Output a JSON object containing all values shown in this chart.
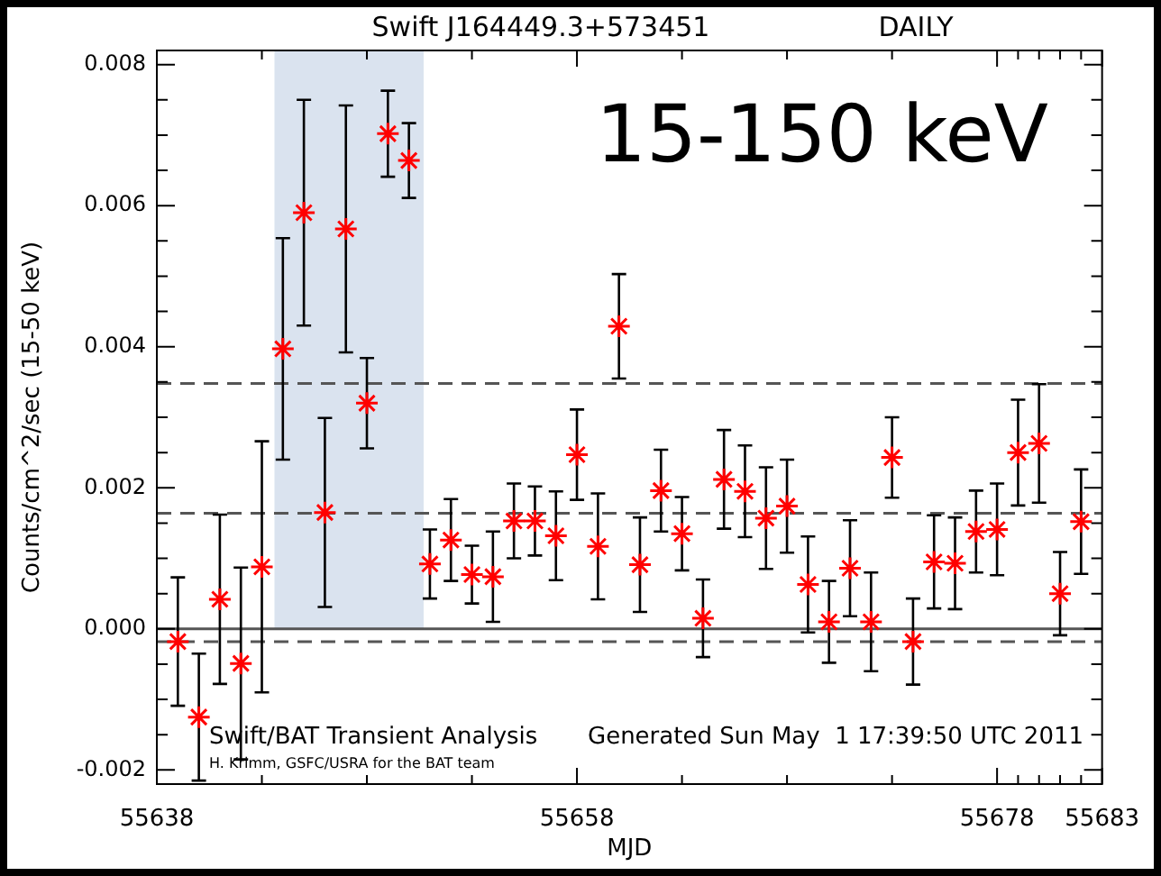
{
  "chart_data": {
    "type": "scatter",
    "title": "Swift J164449.3+573451",
    "subtitle": "DAILY",
    "xlabel": "MJD",
    "ylabel": "Counts/cm^2/sec (15-50 keV)",
    "annotations": [
      "15-150 keV",
      "Swift/BAT Transient Analysis",
      "Generated Sun May  1 17:39:50 UTC 2011",
      "H. Krimm, GSFC/USRA for the BAT team"
    ],
    "x": [
      55639,
      55640,
      55641,
      55642,
      55643,
      55644,
      55645,
      55646,
      55647,
      55648,
      55649,
      55650,
      55651,
      55652,
      55653,
      55654,
      55655,
      55656,
      55657,
      55658,
      55659,
      55660,
      55661,
      55662,
      55663,
      55664,
      55665,
      55666,
      55667,
      55668,
      55669,
      55670,
      55671,
      55672,
      55673,
      55674,
      55675,
      55676,
      55677,
      55678,
      55679,
      55680,
      55681,
      55682
    ],
    "series": [
      {
        "color": "#ff0000",
        "values": [
          -0.00018,
          -0.00125,
          0.00042,
          -0.00049,
          0.00088,
          0.00397,
          0.0059,
          0.00165,
          0.00567,
          0.0032,
          0.00702,
          0.00664,
          0.00092,
          0.00126,
          0.00077,
          0.00074,
          0.00153,
          0.00153,
          0.00132,
          0.00247,
          0.00117,
          0.00429,
          0.00091,
          0.00196,
          0.00135,
          0.00015,
          0.00212,
          0.00195,
          0.00157,
          0.00174,
          0.00063,
          0.0001,
          0.00086,
          0.0001,
          0.00243,
          -0.00018,
          0.00095,
          0.00093,
          0.00138,
          0.00141,
          0.0025,
          0.00263,
          0.0005,
          0.00152
        ],
        "errors": [
          0.00091,
          0.0009,
          0.0012,
          0.00136,
          0.00178,
          0.00157,
          0.0016,
          0.00134,
          0.00175,
          0.00064,
          0.00061,
          0.00053,
          0.00049,
          0.00058,
          0.00041,
          0.00064,
          0.00053,
          0.00049,
          0.00063,
          0.00064,
          0.00075,
          0.00074,
          0.00067,
          0.00058,
          0.00052,
          0.00055,
          0.0007,
          0.00065,
          0.00072,
          0.00066,
          0.00068,
          0.00058,
          0.00068,
          0.0007,
          0.00057,
          0.00061,
          0.00066,
          0.00065,
          0.00058,
          0.00065,
          0.00075,
          0.00084,
          0.00059,
          0.00074
        ]
      }
    ],
    "marker": "cross",
    "xlim": [
      55638,
      55683
    ],
    "xticks": [
      55638,
      {
        "value": 55643,
        "label": null
      },
      {
        "value": 55648,
        "label": null
      },
      {
        "value": 55653,
        "label": null
      },
      55658,
      {
        "value": 55663,
        "label": null
      },
      {
        "value": 55668,
        "label": null
      },
      {
        "value": 55673,
        "label": null
      },
      55678,
      {
        "value": 55679,
        "label": null
      },
      {
        "value": 55680,
        "label": null
      },
      {
        "value": 55681,
        "label": null
      },
      {
        "value": 55682,
        "label": null
      },
      55683
    ],
    "ylim": [
      -0.0022,
      0.0082
    ],
    "yticks": [
      {
        "value": -0.002,
        "label": "-0.002"
      },
      {
        "value": -0.0015,
        "label": null
      },
      {
        "value": -0.001,
        "label": null
      },
      {
        "value": -0.0005,
        "label": null
      },
      {
        "value": 0,
        "label": "0.000"
      },
      {
        "value": 0.0005,
        "label": null
      },
      {
        "value": 0.001,
        "label": null
      },
      {
        "value": 0.0015,
        "label": null
      },
      {
        "value": 0.002,
        "label": "0.002"
      },
      {
        "value": 0.0025,
        "label": null
      },
      {
        "value": 0.003,
        "label": null
      },
      {
        "value": 0.0035,
        "label": null
      },
      {
        "value": 0.004,
        "label": "0.004"
      },
      {
        "value": 0.0045,
        "label": null
      },
      {
        "value": 0.005,
        "label": null
      },
      {
        "value": 0.0055,
        "label": null
      },
      {
        "value": 0.006,
        "label": "0.006"
      },
      {
        "value": 0.0065,
        "label": null
      },
      {
        "value": 0.007,
        "label": null
      },
      {
        "value": 0.0075,
        "label": null
      },
      {
        "value": 0.008,
        "label": "0.008"
      }
    ],
    "ref_lines": [
      {
        "axis": "y",
        "value": 0,
        "color": "#555555",
        "line_style": "solid"
      },
      {
        "axis": "y",
        "value": 0.00348,
        "color": "#555555",
        "line_style": "dashed"
      },
      {
        "axis": "y",
        "value": 0.00164,
        "color": "#555555",
        "line_style": "dashed"
      },
      {
        "axis": "y",
        "value": -0.00018,
        "color": "#555555",
        "line_style": "dashed"
      }
    ],
    "bands": [
      {
        "axis": "x",
        "from": 55643.6,
        "to": 55650.7,
        "color": "#dae3ef"
      }
    ]
  }
}
